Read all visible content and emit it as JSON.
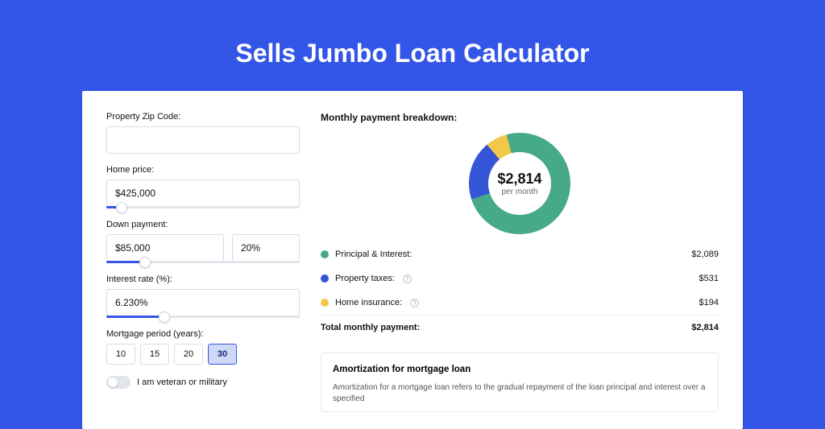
{
  "title": "Sells Jumbo Loan Calculator",
  "colors": {
    "page_bg": "#3456e8",
    "card_bg": "#ffffff",
    "border": "#d8dbe3",
    "slider_track": "#e2e5ec",
    "slider_fill": "#3456e8",
    "period_selected_bg": "#cfd8f7",
    "period_selected_border": "#3456e8"
  },
  "form": {
    "zip_label": "Property Zip Code:",
    "zip_value": "",
    "home_price_label": "Home price:",
    "home_price_value": "$425,000",
    "home_price_slider_pct": 8,
    "down_payment_label": "Down payment:",
    "down_payment_value": "$85,000",
    "down_payment_pct_value": "20%",
    "down_payment_slider_pct": 20,
    "rate_label": "Interest rate (%):",
    "rate_value": "6.230%",
    "rate_slider_pct": 30,
    "period_label": "Mortgage period (years):",
    "periods": [
      "10",
      "15",
      "20",
      "30"
    ],
    "period_selected": "30",
    "veteran_label": "I am veteran or military",
    "veteran_on": false
  },
  "breakdown": {
    "title": "Monthly payment breakdown:",
    "chart": {
      "type": "donut",
      "center_value": "$2,814",
      "center_sub": "per month",
      "segments": [
        {
          "label": "Principal & Interest:",
          "value": "$2,089",
          "amount": 2089,
          "color": "#46a988",
          "has_info": false
        },
        {
          "label": "Property taxes:",
          "value": "$531",
          "amount": 531,
          "color": "#3355d6",
          "has_info": true
        },
        {
          "label": "Home insurance:",
          "value": "$194",
          "amount": 194,
          "color": "#f3c748",
          "has_info": true
        }
      ],
      "total_label": "Total monthly payment:",
      "total_value": "$2,814",
      "hole_pct": 62
    }
  },
  "amortization": {
    "title": "Amortization for mortgage loan",
    "text": "Amortization for a mortgage loan refers to the gradual repayment of the loan principal and interest over a specified"
  }
}
